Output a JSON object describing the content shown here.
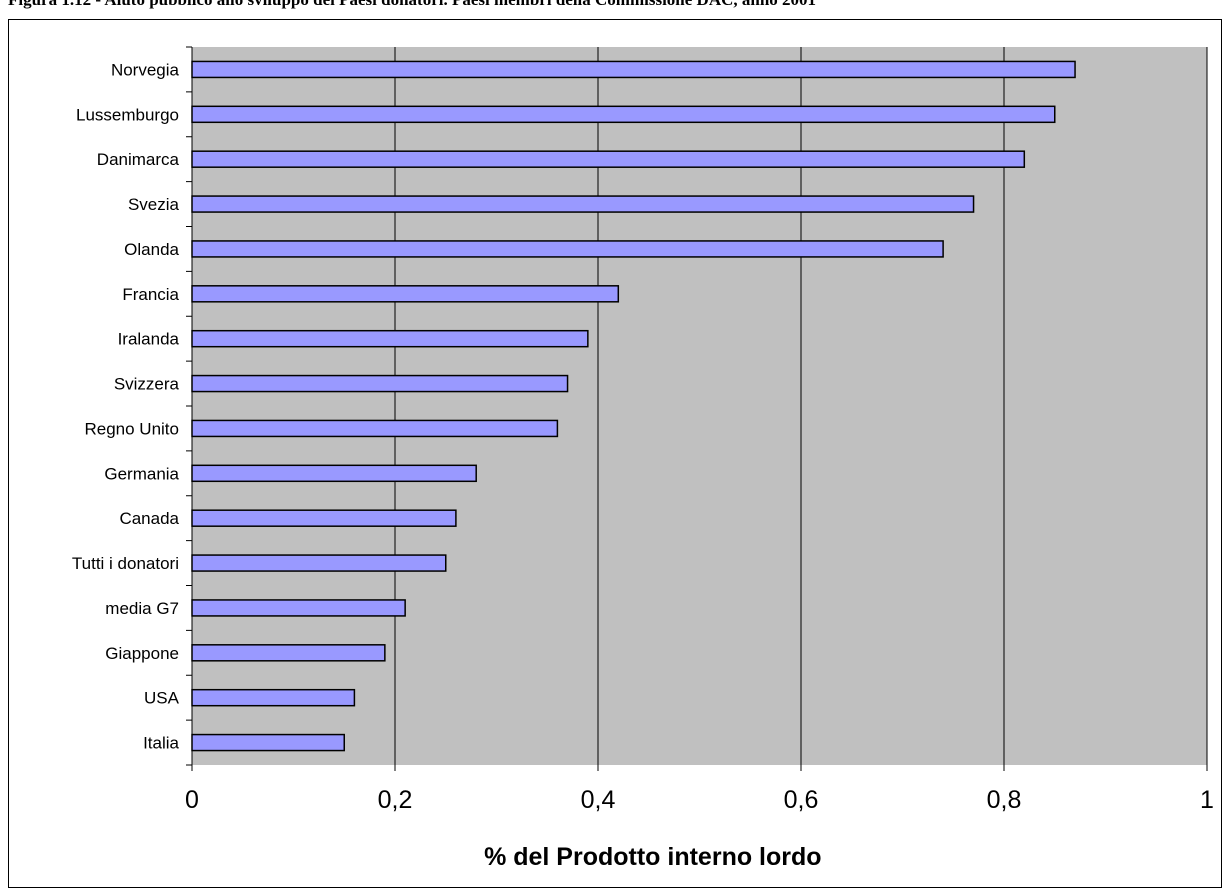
{
  "caption": "Figura 1.12 - Aiuto pubblico allo sviluppo dei Paesi donatori. Paesi membri della Commissione DAC, anno 2001",
  "chart_data": {
    "type": "bar",
    "orientation": "horizontal",
    "categories": [
      "Norvegia",
      "Lussemburgo",
      "Danimarca",
      "Svezia",
      "Olanda",
      "Francia",
      "Iralanda",
      "Svizzera",
      "Regno Unito",
      "Germania",
      "Canada",
      "Tutti i donatori",
      "media G7",
      "Giappone",
      "USA",
      "Italia"
    ],
    "values": [
      0.87,
      0.85,
      0.82,
      0.77,
      0.74,
      0.42,
      0.39,
      0.37,
      0.36,
      0.28,
      0.26,
      0.25,
      0.21,
      0.19,
      0.16,
      0.15
    ],
    "xlim": [
      0,
      1
    ],
    "x_ticks": [
      0,
      0.2,
      0.4,
      0.6,
      0.8,
      1
    ],
    "x_tick_labels": [
      "0",
      "0,2",
      "0,4",
      "0,6",
      "0,8",
      "1"
    ],
    "xlabel": "% del Prodotto interno lordo",
    "ylabel": "",
    "title": "",
    "grid": "vertical",
    "legend": "none",
    "colors": {
      "bar_fill": "#9999ff",
      "bar_stroke": "#000000",
      "plot_bg": "#c0c0c0",
      "grid": "#000000"
    }
  }
}
